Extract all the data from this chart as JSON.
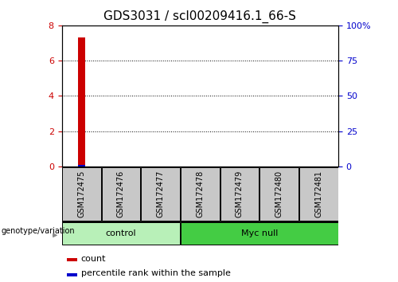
{
  "title": "GDS3031 / scl00209416.1_66-S",
  "samples": [
    "GSM172475",
    "GSM172476",
    "GSM172477",
    "GSM172478",
    "GSM172479",
    "GSM172480",
    "GSM172481"
  ],
  "bar_values": [
    7.3,
    0,
    0,
    0,
    0,
    0,
    0
  ],
  "percentile_values": [
    0.9,
    0,
    0,
    0,
    0,
    0,
    0
  ],
  "bar_color": "#cc0000",
  "percentile_color": "#0000cc",
  "ylim_left": [
    0,
    8
  ],
  "ylim_right": [
    0,
    100
  ],
  "yticks_left": [
    0,
    2,
    4,
    6,
    8
  ],
  "yticks_right": [
    0,
    25,
    50,
    75,
    100
  ],
  "ytick_labels_right": [
    "0",
    "25",
    "50",
    "75",
    "100%"
  ],
  "ytick_labels_left": [
    "0",
    "2",
    "4",
    "6",
    "8"
  ],
  "left_tick_color": "#cc0000",
  "right_tick_color": "#0000cc",
  "grid_color": "#000000",
  "groups": [
    {
      "label": "control",
      "start": 0,
      "end": 3,
      "color": "#b8f0b8"
    },
    {
      "label": "Myc null",
      "start": 3,
      "end": 7,
      "color": "#44cc44"
    }
  ],
  "group_label_prefix": "genotype/variation",
  "legend_count_label": "count",
  "legend_percentile_label": "percentile rank within the sample",
  "title_fontsize": 11,
  "tick_fontsize": 8,
  "bg_color": "#ffffff",
  "plot_bg_color": "#ffffff",
  "sample_box_color": "#c8c8c8"
}
